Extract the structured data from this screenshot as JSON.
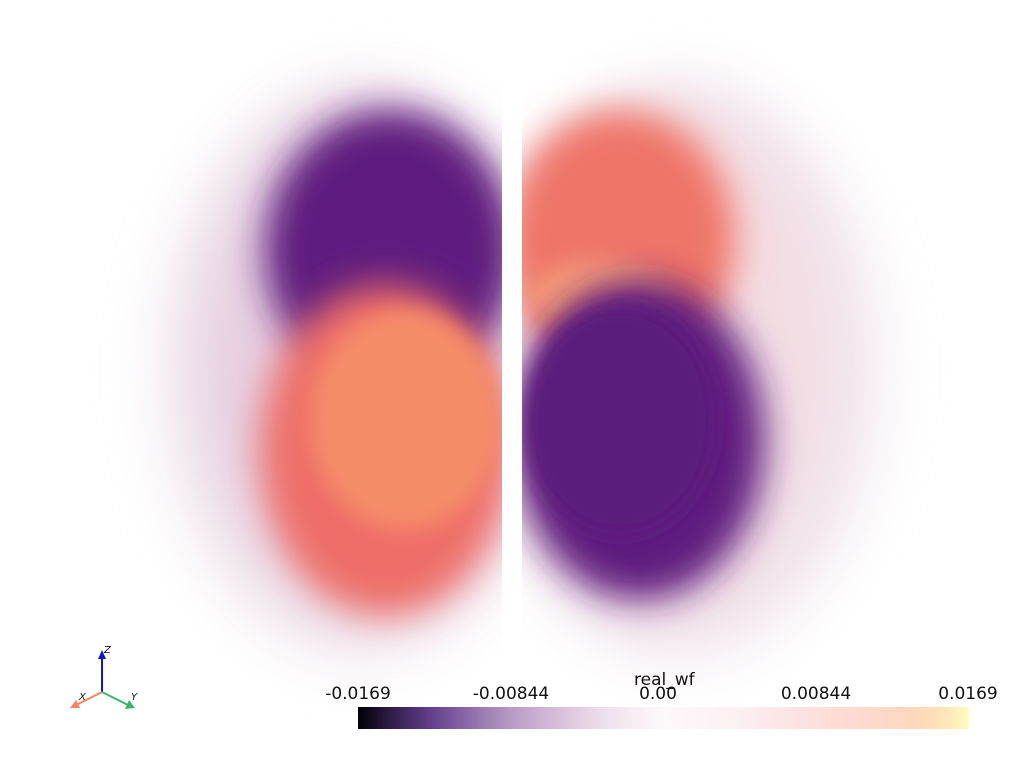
{
  "scene": {
    "description_free": true,
    "colormap": "magma",
    "lobes": [
      "left-lobe",
      "right-lobe"
    ]
  },
  "colors": {
    "background": "#ffffff",
    "purple": "#5f1c7e",
    "salmon": "#f28466",
    "pink": "#ef6e67",
    "x_axis": "#f4845f",
    "y_axis": "#3cb371",
    "z_axis": "#1515c8"
  },
  "axes": {
    "x": "X",
    "y": "Y",
    "z": "Z"
  },
  "scalar_bar": {
    "title": "real_wf",
    "ticks": [
      "-0.0169",
      "-0.00844",
      "0.00",
      "0.00844",
      "0.0169"
    ],
    "range": [
      -0.0169,
      0.0169
    ]
  }
}
